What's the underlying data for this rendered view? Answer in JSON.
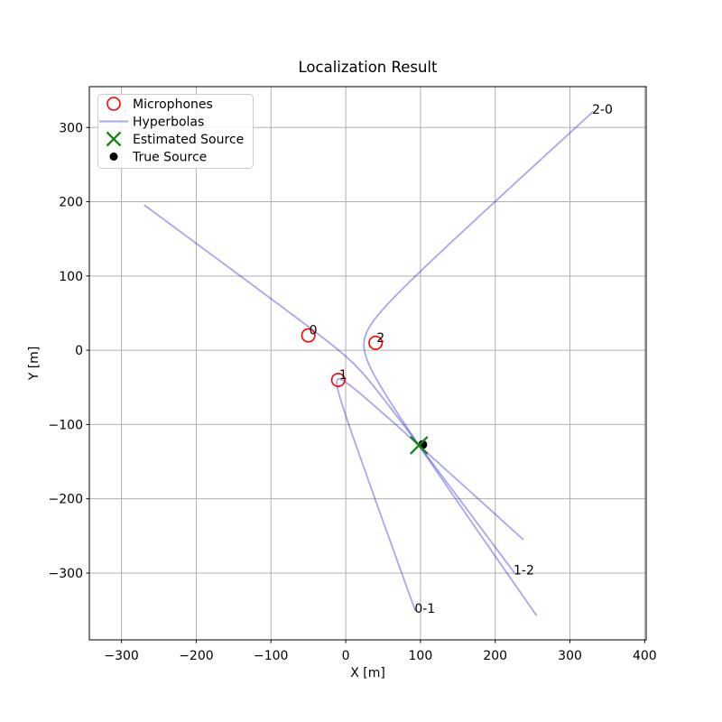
{
  "chart_data": {
    "type": "scatter",
    "title": "Localization Result",
    "xlabel": "X [m]",
    "ylabel": "Y [m]",
    "xlim": [
      -343,
      402
    ],
    "ylim": [
      -390,
      355
    ],
    "xticks": [
      -300,
      -200,
      -100,
      0,
      100,
      200,
      300,
      400
    ],
    "yticks": [
      -300,
      -200,
      -100,
      0,
      100,
      200,
      300
    ],
    "grid": true,
    "microphones": [
      {
        "label": "0",
        "x": -50,
        "y": 20
      },
      {
        "label": "1",
        "x": -10,
        "y": -40
      },
      {
        "label": "2",
        "x": 40,
        "y": 10
      }
    ],
    "estimated_source": {
      "x": 98,
      "y": -128
    },
    "true_source": {
      "x": 103,
      "y": -127
    },
    "hyperbolas": [
      {
        "label": "2-0",
        "mics": [
          2,
          0
        ],
        "range_diff_m": -59.6,
        "t_range": [
          -3,
          3
        ]
      },
      {
        "label": "0-1",
        "mics": [
          0,
          1
        ],
        "range_diff_m": 70.0,
        "t_range": [
          -3,
          3
        ]
      },
      {
        "label": "1-2",
        "mics": [
          1,
          2
        ],
        "range_diff_m": -10.4,
        "t_range": [
          -3,
          3
        ]
      }
    ],
    "legend": {
      "position": "upper left",
      "entries": [
        {
          "label": "Microphones",
          "marker": "open-circle",
          "color": "#ff0000"
        },
        {
          "label": "Hyperbolas",
          "marker": "line",
          "color": "#a2a5ef"
        },
        {
          "label": "Estimated Source",
          "marker": "x",
          "color": "#168416"
        },
        {
          "label": "True Source",
          "marker": "dot",
          "color": "#000000"
        }
      ]
    },
    "colors": {
      "microphone": "#ff0000",
      "hyperbola": "rgba(32,36,214,0.40)",
      "estimated_source": "#168416",
      "true_source": "#000000",
      "grid": "#b0b0b0",
      "axis": "#000000",
      "background": "#ffffff"
    }
  }
}
